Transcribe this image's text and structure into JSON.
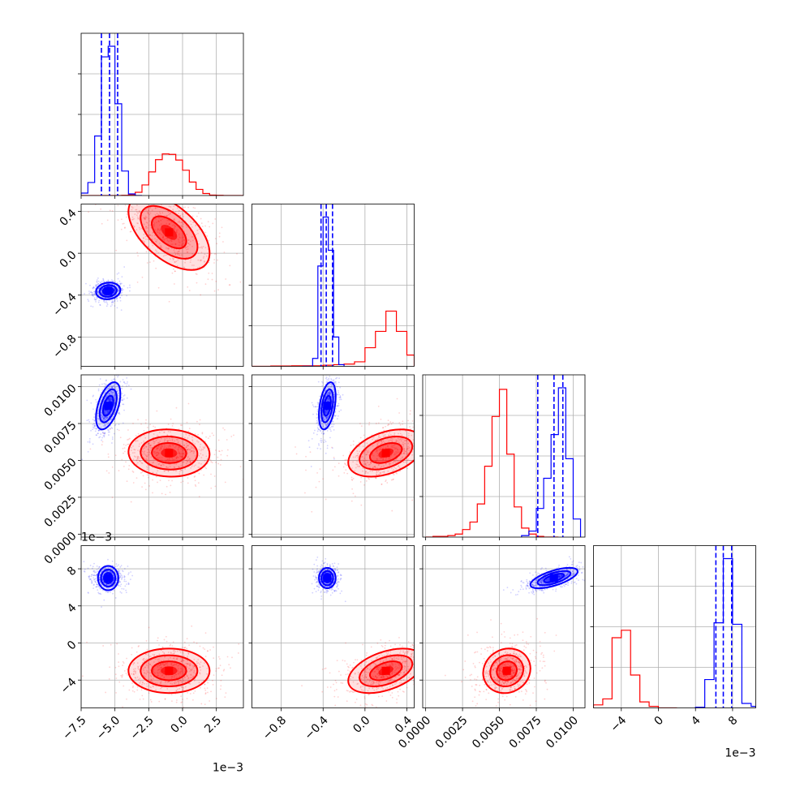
{
  "chart_data": {
    "type": "corner",
    "colors": {
      "series_a": "#ff0000",
      "series_b": "#0000ff"
    },
    "grid": true,
    "title": "",
    "parameters": [
      {
        "lim": [
          -7.5,
          4.5
        ],
        "ticks": [
          -7.5,
          -5.0,
          -2.5,
          0.0,
          2.5
        ],
        "tick_labels": [
          "−7.5",
          "−5.0",
          "−2.5",
          "0.0",
          "2.5"
        ],
        "offset_label": "1e−3"
      },
      {
        "lim": [
          -1.08,
          0.47
        ],
        "ticks": [
          -0.8,
          -0.4,
          0.0,
          0.4
        ],
        "tick_labels": [
          "−0.8",
          "−0.4",
          "0.0",
          "0.4"
        ],
        "offset_label": ""
      },
      {
        "lim": [
          -0.0002,
          0.0108
        ],
        "ticks": [
          0.0,
          0.0025,
          0.005,
          0.0075,
          0.01
        ],
        "tick_labels": [
          "0.0000",
          "0.0025",
          "0.0050",
          "0.0075",
          "0.0100"
        ],
        "offset_label": ""
      },
      {
        "lim": [
          -7.0,
          10.5
        ],
        "ticks": [
          -4,
          0,
          4,
          8
        ],
        "tick_labels": [
          "−4",
          "0",
          "4",
          "8"
        ],
        "offset_label": "1e−3"
      }
    ],
    "series": [
      {
        "name": "",
        "color": "#ff0000",
        "means": [
          -1.0,
          0.2,
          0.0055,
          -3.0
        ],
        "stds": [
          1.5,
          0.18,
          0.0008,
          1.2
        ],
        "correlations": [
          [
            0,
            1,
            -0.55
          ],
          [
            0,
            2,
            -0.05
          ],
          [
            0,
            3,
            0.0
          ],
          [
            1,
            2,
            0.4
          ],
          [
            1,
            3,
            0.45
          ],
          [
            2,
            3,
            0.1
          ]
        ],
        "quantile_lines": [],
        "histograms": [
          {
            "edges": [
              -7.5,
              -7.0,
              -6.5,
              -6.0,
              -5.5,
              -5.0,
              -4.5,
              -4.0,
              -3.5,
              -3.0,
              -2.5,
              -2.0,
              -1.5,
              -1.0,
              -0.5,
              0.0,
              0.5,
              1.0,
              1.5,
              2.0,
              2.5,
              3.0,
              3.5,
              4.0,
              4.5
            ],
            "counts": [
              0,
              0,
              0,
              0,
              0,
              0,
              0.5,
              2,
              8,
              26,
              58,
              88,
              102,
              101,
              87,
              62,
              33,
              15,
              5,
              1,
              0.5,
              0,
              0,
              0
            ]
          },
          {
            "edges": [
              -1.08,
              -1.0,
              -0.9,
              -0.8,
              -0.7,
              -0.6,
              -0.5,
              -0.4,
              -0.3,
              -0.2,
              -0.1,
              0.0,
              0.1,
              0.2,
              0.3,
              0.4,
              0.47
            ],
            "counts": [
              0,
              0,
              0.5,
              0.5,
              1,
              1,
              1,
              2,
              3,
              4,
              8,
              33,
              62,
              98,
              62,
              20
            ]
          },
          {
            "edges": [
              0.0,
              0.0005,
              0.001,
              0.0015,
              0.002,
              0.0025,
              0.003,
              0.0035,
              0.004,
              0.0045,
              0.005,
              0.0055,
              0.006,
              0.0065,
              0.007,
              0.0075,
              0.008,
              0.0085,
              0.009
            ],
            "counts": [
              0,
              0.5,
              0.5,
              1,
              2,
              5,
              10,
              22,
              47,
              80,
              98,
              55,
              20,
              6,
              2,
              0.5,
              0,
              0
            ]
          },
          {
            "edges": [
              -7.0,
              -6.0,
              -5.0,
              -4.0,
              -3.0,
              -2.0,
              -1.0,
              0.0,
              1.0,
              2.0
            ],
            "counts": [
              2,
              6,
              47,
              52,
              22,
              4,
              1,
              0,
              0
            ]
          }
        ]
      },
      {
        "name": "",
        "color": "#0000ff",
        "means": [
          -5.5,
          -0.36,
          0.0087,
          7.0
        ],
        "stds": [
          0.45,
          0.04,
          0.0008,
          0.55
        ],
        "correlations": [
          [
            0,
            1,
            0.1
          ],
          [
            0,
            2,
            0.5
          ],
          [
            0,
            3,
            0.0
          ],
          [
            1,
            2,
            0.4
          ],
          [
            1,
            3,
            0.0
          ],
          [
            2,
            3,
            0.65
          ]
        ],
        "quantile_lines": [
          [
            -6.0,
            -5.4,
            -4.8
          ],
          [
            -0.42,
            -0.37,
            -0.31
          ],
          [
            0.0076,
            0.0087,
            0.0093
          ],
          [
            6.2,
            7.0,
            7.9
          ]
        ],
        "histograms": [
          {
            "edges": [
              -7.5,
              -7.0,
              -6.5,
              -6.0,
              -5.5,
              -5.0,
              -4.5,
              -4.0,
              -3.5,
              -3.0
            ],
            "counts": [
              6,
              32,
              146,
              340,
              366,
              225,
              60,
              4,
              0
            ]
          },
          {
            "edges": [
              -0.6,
              -0.55,
              -0.5,
              -0.45,
              -0.4,
              -0.35,
              -0.3,
              -0.25,
              -0.2
            ],
            "counts": [
              0,
              0,
              14,
              178,
              265,
              206,
              52,
              3
            ]
          },
          {
            "edges": [
              0.0065,
              0.007,
              0.0075,
              0.008,
              0.0085,
              0.009,
              0.0095,
              0.01,
              0.0105
            ],
            "counts": [
              1,
              4,
              19,
              39,
              68,
              99,
              52,
              12
            ]
          },
          {
            "edges": [
              4.0,
              5.0,
              6.0,
              7.0,
              8.0,
              9.0,
              10.0,
              10.5
            ],
            "counts": [
              0.4,
              19,
              57,
              100,
              56,
              3,
              1
            ]
          }
        ]
      }
    ]
  }
}
